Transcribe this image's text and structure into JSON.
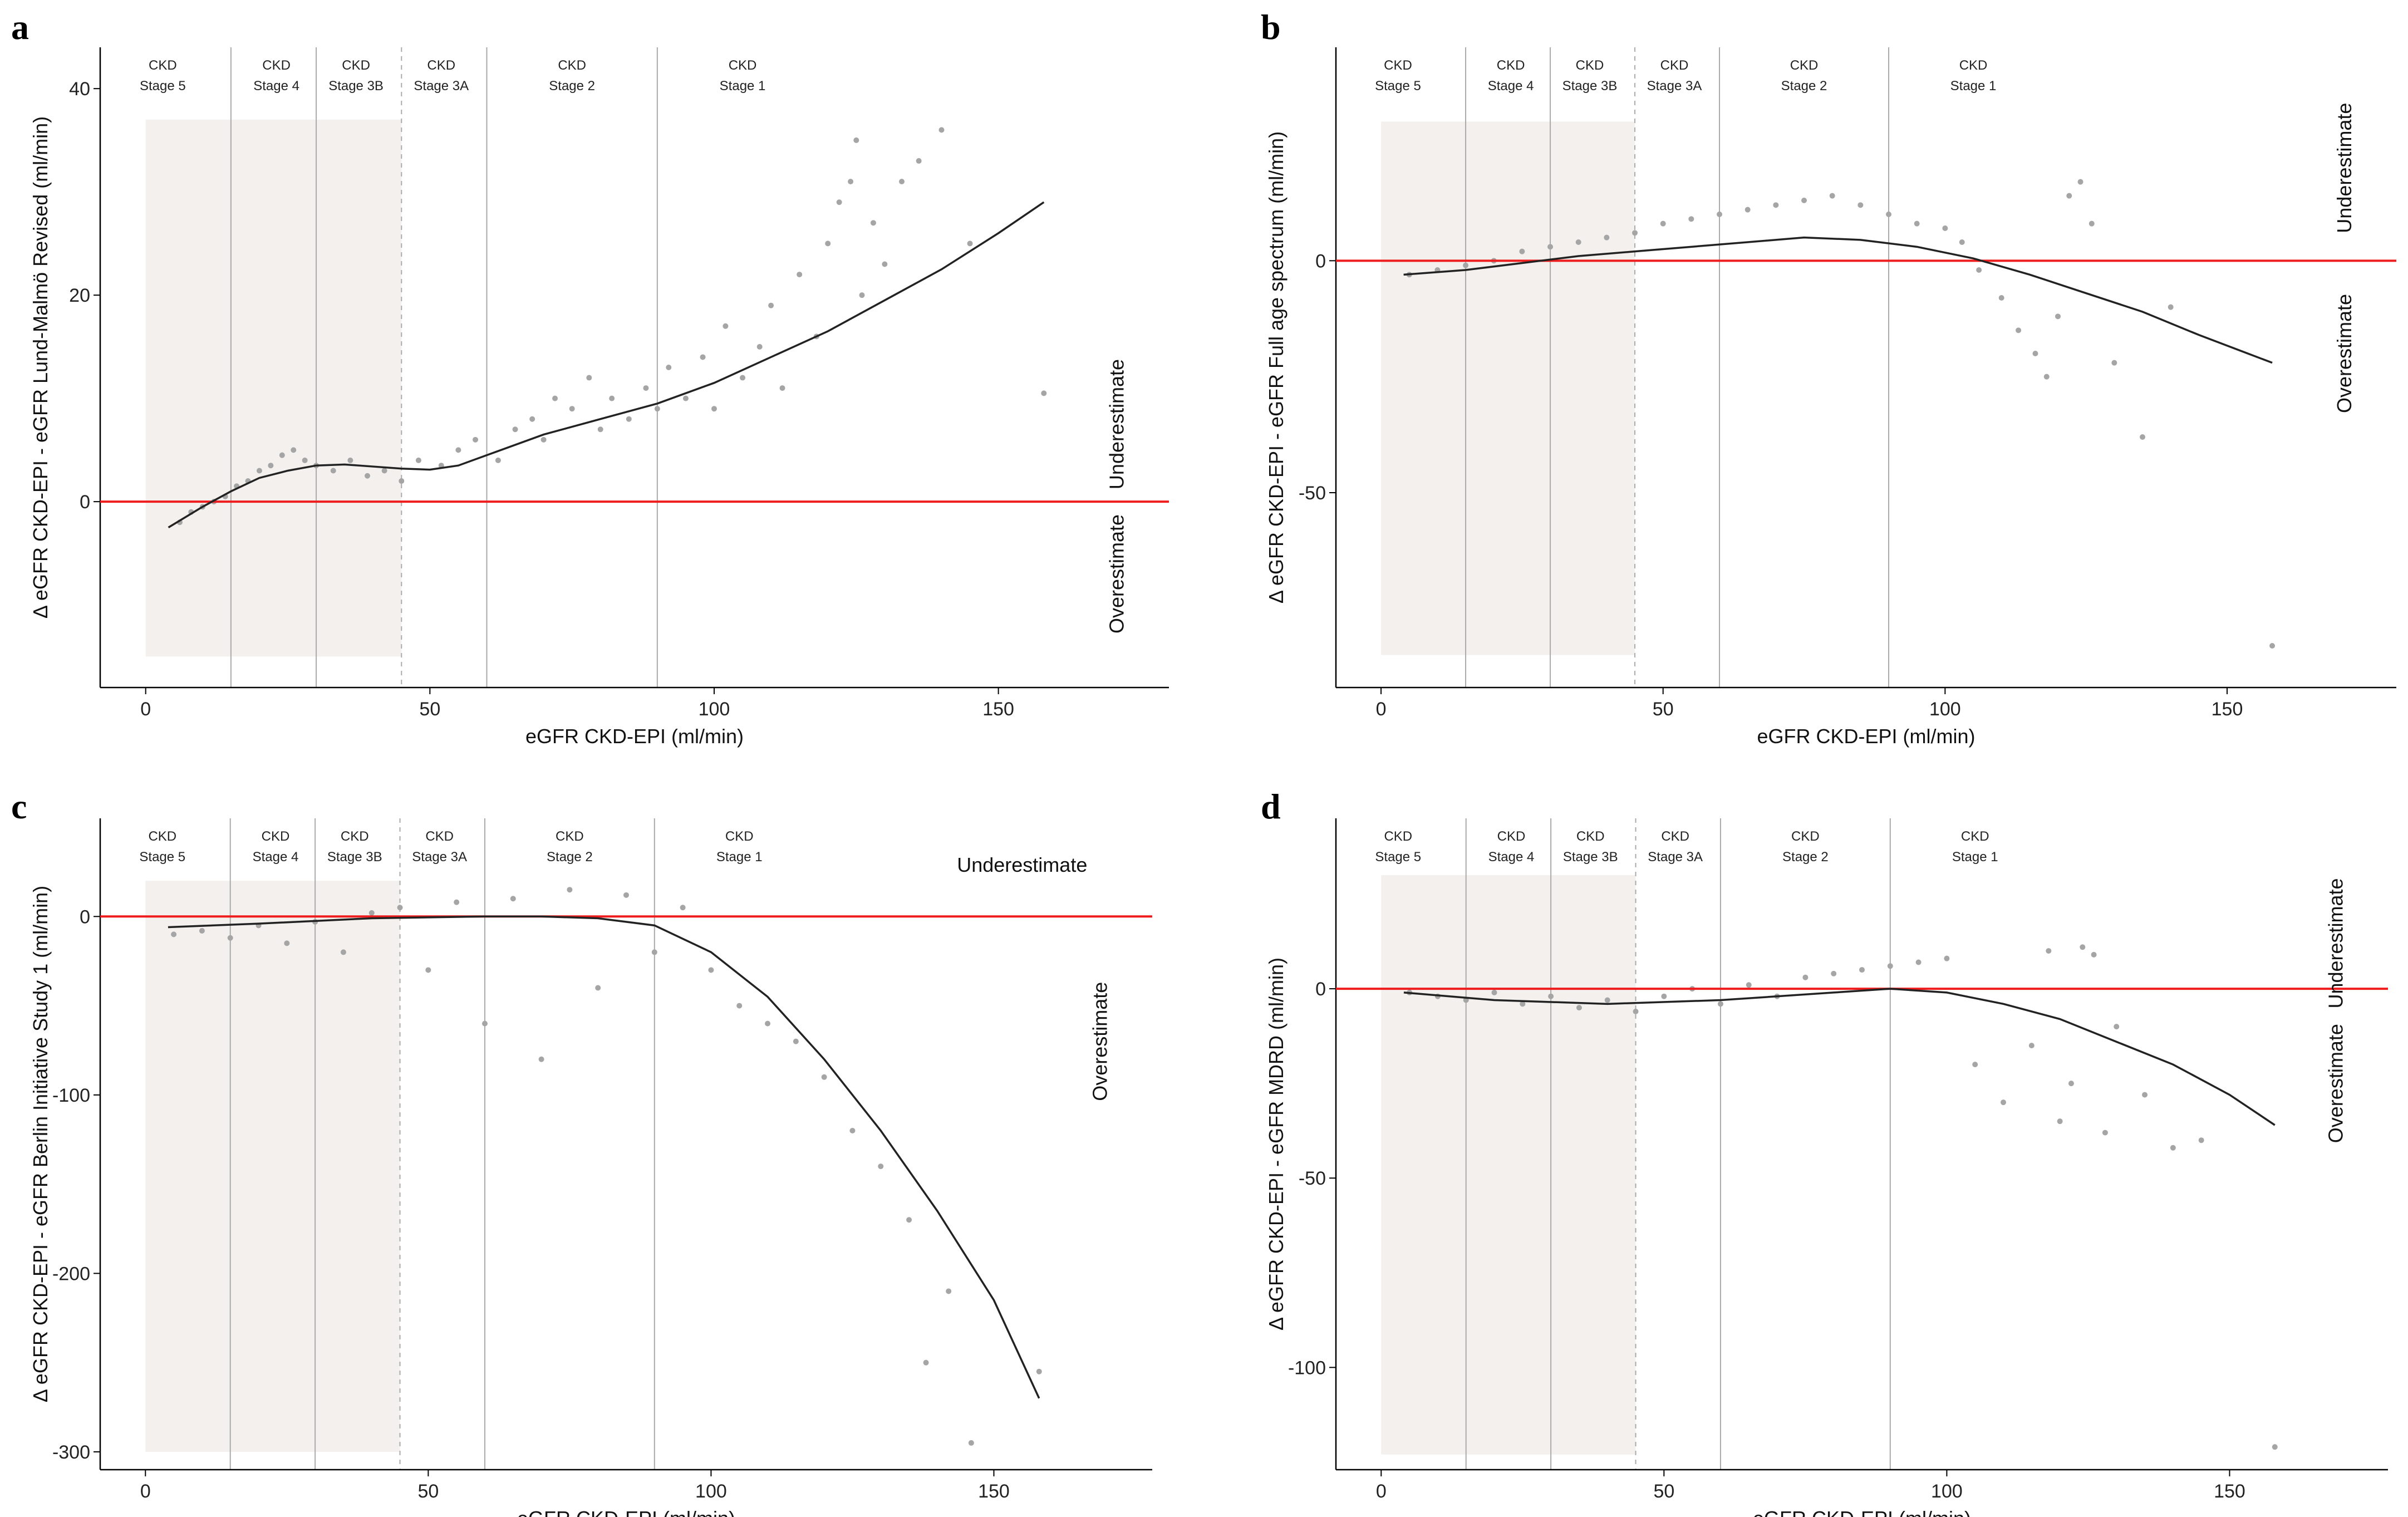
{
  "chart_data": [
    {
      "type": "scatter",
      "panel": "a",
      "xlabel": "eGFR CKD-EPI (ml/min)",
      "ylabel": "Δ eGFR CKD-EPI - eGFR Lund-Malmö Revised (ml/min)",
      "xlim": [
        -8,
        180
      ],
      "ylim": [
        -18,
        44
      ],
      "xticks": [
        0,
        50,
        100,
        150
      ],
      "yticks": [
        0,
        20,
        40
      ],
      "reference_line": 0,
      "shaded_region": {
        "x": [
          0,
          45
        ],
        "y": [
          -15,
          37
        ]
      },
      "stage_boundaries": [
        15,
        30,
        60,
        90
      ],
      "dashed_boundary": 45,
      "stages": [
        {
          "l1": "CKD",
          "l2": "Stage 5",
          "x": 3
        },
        {
          "l1": "CKD",
          "l2": "Stage 4",
          "x": 23
        },
        {
          "l1": "CKD",
          "l2": "Stage 3B",
          "x": 37
        },
        {
          "l1": "CKD",
          "l2": "Stage 3A",
          "x": 52
        },
        {
          "l1": "CKD",
          "l2": "Stage 2",
          "x": 75
        },
        {
          "l1": "CKD",
          "l2": "Stage 1",
          "x": 105
        }
      ],
      "annotations": [
        {
          "text": "Underestimate",
          "x": 172,
          "y": 7.5,
          "rotate": -90
        },
        {
          "text": "Overestimate",
          "x": 172,
          "y": -7,
          "rotate": -90
        }
      ],
      "trend": {
        "x": [
          4,
          10,
          15,
          20,
          25,
          30,
          35,
          40,
          45,
          50,
          55,
          60,
          70,
          80,
          90,
          100,
          110,
          120,
          130,
          140,
          150,
          158
        ],
        "y": [
          -2.5,
          -0.5,
          1,
          2.3,
          3,
          3.5,
          3.6,
          3.4,
          3.2,
          3.1,
          3.5,
          4.5,
          6.5,
          8,
          9.5,
          11.5,
          14,
          16.5,
          19.5,
          22.5,
          26,
          29
        ]
      },
      "scatter": {
        "x": [
          6,
          8,
          10,
          12,
          14,
          16,
          18,
          20,
          22,
          24,
          26,
          28,
          30,
          33,
          36,
          39,
          42,
          45,
          48,
          52,
          55,
          58,
          62,
          65,
          68,
          70,
          72,
          75,
          78,
          80,
          82,
          85,
          88,
          90,
          92,
          95,
          98,
          100,
          102,
          105,
          108,
          110,
          112,
          115,
          118,
          120,
          122,
          124,
          125,
          126,
          128,
          130,
          133,
          136,
          140,
          145,
          158
        ],
        "y": [
          -2,
          -1,
          -0.5,
          0,
          0.5,
          1.5,
          2,
          3,
          3.5,
          4.5,
          5,
          4,
          3.5,
          3,
          4,
          2.5,
          3,
          2,
          4,
          3.5,
          5,
          6,
          4,
          7,
          8,
          6,
          10,
          9,
          12,
          7,
          10,
          8,
          11,
          9,
          13,
          10,
          14,
          9,
          17,
          12,
          15,
          19,
          11,
          22,
          16,
          25,
          29,
          31,
          35,
          20,
          27,
          23,
          31,
          33,
          36,
          25,
          10.5
        ]
      }
    },
    {
      "type": "scatter",
      "panel": "b",
      "xlabel": "eGFR CKD-EPI (ml/min)",
      "ylabel": "Δ eGFR CKD-EPI - eGFR Full age spectrum (ml/min)",
      "xlim": [
        -8,
        180
      ],
      "ylim": [
        -92,
        46
      ],
      "xticks": [
        0,
        50,
        100,
        150
      ],
      "yticks": [
        -50,
        0
      ],
      "reference_line": 0,
      "shaded_region": {
        "x": [
          0,
          45
        ],
        "y": [
          -85,
          30
        ]
      },
      "stage_boundaries": [
        15,
        30,
        60,
        90
      ],
      "dashed_boundary": 45,
      "stages": [
        {
          "l1": "CKD",
          "l2": "Stage 5",
          "x": 3
        },
        {
          "l1": "CKD",
          "l2": "Stage 4",
          "x": 23
        },
        {
          "l1": "CKD",
          "l2": "Stage 3B",
          "x": 37
        },
        {
          "l1": "CKD",
          "l2": "Stage 3A",
          "x": 52
        },
        {
          "l1": "CKD",
          "l2": "Stage 2",
          "x": 75
        },
        {
          "l1": "CKD",
          "l2": "Stage 1",
          "x": 105
        }
      ],
      "annotations": [
        {
          "text": "Underestimate",
          "x": 172,
          "y": 20,
          "rotate": -90
        },
        {
          "text": "Overestimate",
          "x": 172,
          "y": -20,
          "rotate": -90
        }
      ],
      "trend": {
        "x": [
          4,
          15,
          25,
          35,
          45,
          55,
          65,
          75,
          85,
          95,
          105,
          115,
          125,
          135,
          145,
          158
        ],
        "y": [
          -3,
          -2,
          -0.5,
          1,
          2,
          3,
          4,
          5,
          4.5,
          3,
          0.5,
          -3,
          -7,
          -11,
          -16,
          -22
        ]
      },
      "scatter": {
        "x": [
          5,
          10,
          15,
          20,
          25,
          30,
          35,
          40,
          45,
          50,
          55,
          60,
          65,
          70,
          75,
          80,
          85,
          90,
          95,
          100,
          103,
          106,
          110,
          113,
          116,
          118,
          120,
          122,
          124,
          126,
          130,
          135,
          140,
          158
        ],
        "y": [
          -3,
          -2,
          -1,
          0,
          2,
          3,
          4,
          5,
          6,
          8,
          9,
          10,
          11,
          12,
          13,
          14,
          12,
          10,
          8,
          7,
          4,
          -2,
          -8,
          -15,
          -20,
          -25,
          -12,
          14,
          17,
          8,
          -22,
          -38,
          -10,
          -83
        ]
      }
    },
    {
      "type": "scatter",
      "panel": "c",
      "xlabel": "eGFR CKD-EPI (ml/min)",
      "ylabel": "Δ eGFR CKD-EPI - eGFR Berlin Initiative Study 1 (ml/min)",
      "xlim": [
        -8,
        178
      ],
      "ylim": [
        -310,
        55
      ],
      "xticks": [
        0,
        50,
        100,
        150
      ],
      "yticks": [
        -300,
        -200,
        -100,
        0
      ],
      "reference_line": 0,
      "shaded_region": {
        "x": [
          0,
          45
        ],
        "y": [
          -300,
          20
        ]
      },
      "stage_boundaries": [
        15,
        30,
        60,
        90
      ],
      "dashed_boundary": 45,
      "stages": [
        {
          "l1": "CKD",
          "l2": "Stage 5",
          "x": 3
        },
        {
          "l1": "CKD",
          "l2": "Stage 4",
          "x": 23
        },
        {
          "l1": "CKD",
          "l2": "Stage 3B",
          "x": 37
        },
        {
          "l1": "CKD",
          "l2": "Stage 3A",
          "x": 52
        },
        {
          "l1": "CKD",
          "l2": "Stage 2",
          "x": 75
        },
        {
          "l1": "CKD",
          "l2": "Stage 1",
          "x": 105
        }
      ],
      "annotations": [
        {
          "text": "Underestimate",
          "x": 155,
          "y": 25,
          "rotate": 0
        },
        {
          "text": "Overestimate",
          "x": 170,
          "y": -70,
          "rotate": -90
        }
      ],
      "trend": {
        "x": [
          4,
          20,
          40,
          60,
          70,
          80,
          90,
          100,
          110,
          120,
          130,
          140,
          150,
          158
        ],
        "y": [
          -6,
          -4,
          -1,
          0,
          0,
          -1,
          -5,
          -20,
          -45,
          -80,
          -120,
          -165,
          -215,
          -270
        ]
      },
      "scatter": {
        "x": [
          5,
          10,
          15,
          20,
          25,
          30,
          35,
          40,
          45,
          50,
          55,
          60,
          65,
          70,
          75,
          80,
          85,
          90,
          95,
          100,
          105,
          110,
          115,
          120,
          125,
          130,
          135,
          138,
          142,
          146,
          158
        ],
        "y": [
          -10,
          -8,
          -12,
          -5,
          -15,
          -3,
          -20,
          2,
          5,
          -30,
          8,
          -60,
          10,
          -80,
          15,
          -40,
          12,
          -20,
          5,
          -30,
          -50,
          -60,
          -70,
          -90,
          -120,
          -140,
          -170,
          -250,
          -210,
          -295,
          -255
        ]
      }
    },
    {
      "type": "scatter",
      "panel": "d",
      "xlabel": "eGFR CKD-EPI (ml/min)",
      "ylabel": "Δ eGFR CKD-EPI - eGFR MDRD (ml/min)",
      "xlim": [
        -8,
        178
      ],
      "ylim": [
        -127,
        45
      ],
      "xticks": [
        0,
        50,
        100,
        150
      ],
      "yticks": [
        -100,
        -50,
        0
      ],
      "reference_line": 0,
      "shaded_region": {
        "x": [
          0,
          45
        ],
        "y": [
          -123,
          30
        ]
      },
      "stage_boundaries": [
        15,
        30,
        60,
        90
      ],
      "dashed_boundary": 45,
      "stages": [
        {
          "l1": "CKD",
          "l2": "Stage 5",
          "x": 3
        },
        {
          "l1": "CKD",
          "l2": "Stage 4",
          "x": 23
        },
        {
          "l1": "CKD",
          "l2": "Stage 3B",
          "x": 37
        },
        {
          "l1": "CKD",
          "l2": "Stage 3A",
          "x": 52
        },
        {
          "l1": "CKD",
          "l2": "Stage 2",
          "x": 75
        },
        {
          "l1": "CKD",
          "l2": "Stage 1",
          "x": 105
        }
      ],
      "annotations": [
        {
          "text": "Underestimate",
          "x": 170,
          "y": 12,
          "rotate": -90
        },
        {
          "text": "Overestimate",
          "x": 170,
          "y": -25,
          "rotate": -90
        }
      ],
      "trend": {
        "x": [
          4,
          20,
          40,
          60,
          80,
          90,
          100,
          110,
          120,
          130,
          140,
          150,
          158
        ],
        "y": [
          -1,
          -3,
          -4,
          -3,
          -1,
          0,
          -1,
          -4,
          -8,
          -14,
          -20,
          -28,
          -36
        ]
      },
      "scatter": {
        "x": [
          5,
          10,
          15,
          20,
          25,
          30,
          35,
          40,
          45,
          50,
          55,
          60,
          65,
          70,
          75,
          80,
          85,
          90,
          95,
          100,
          105,
          110,
          115,
          118,
          120,
          122,
          124,
          126,
          128,
          130,
          135,
          140,
          145,
          158
        ],
        "y": [
          -1,
          -2,
          -3,
          -1,
          -4,
          -2,
          -5,
          -3,
          -6,
          -2,
          0,
          -4,
          1,
          -2,
          3,
          4,
          5,
          6,
          7,
          8,
          -20,
          -30,
          -15,
          10,
          -35,
          -25,
          11,
          9,
          -38,
          -10,
          -28,
          -42,
          -40,
          -121
        ]
      }
    }
  ]
}
